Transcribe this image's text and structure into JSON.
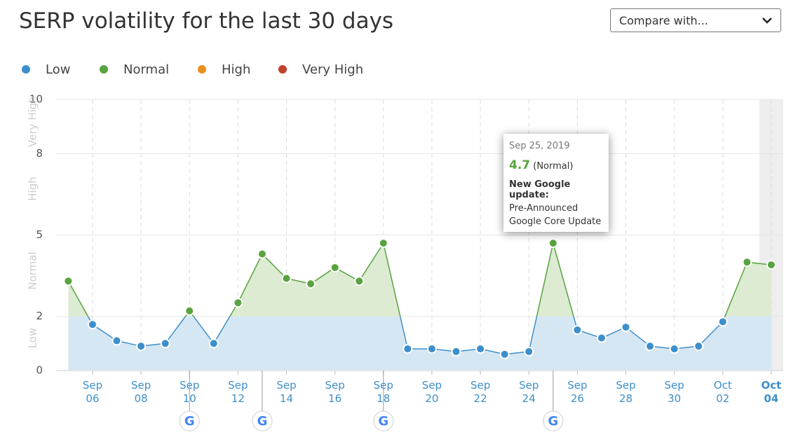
{
  "header": {
    "title": "SERP volatility for the last 30 days",
    "compare": "Compare with..."
  },
  "chart_data": {
    "type": "line",
    "bands": [
      {
        "name": "Low",
        "color": "#3d8fcb",
        "fill": "#d6e7f4",
        "from": 0,
        "to": 2
      },
      {
        "name": "Normal",
        "color": "#58a33f",
        "fill": "#dcebd2",
        "from": 2,
        "to": 5
      },
      {
        "name": "High",
        "color": "#e8901d",
        "fill": "#f6e3c8",
        "from": 5,
        "to": 8
      },
      {
        "name": "Very High",
        "color": "#c3402d",
        "fill": "#f3d3cd",
        "from": 8,
        "to": 10
      }
    ],
    "categories": [
      null,
      "Sep 06",
      null,
      "Sep 08",
      null,
      "Sep 10",
      null,
      "Sep 12",
      null,
      "Sep 14",
      null,
      "Sep 16",
      null,
      "Sep 18",
      null,
      "Sep 20",
      null,
      "Sep 22",
      null,
      "Sep 24",
      null,
      "Sep 26",
      null,
      "Sep 28",
      null,
      "Sep 30",
      null,
      "Oct 02",
      null,
      "Oct 04"
    ],
    "values": [
      3.3,
      1.7,
      1.1,
      0.9,
      1.0,
      2.2,
      1.0,
      2.5,
      4.3,
      3.4,
      3.2,
      3.8,
      3.3,
      4.7,
      0.8,
      0.8,
      0.7,
      0.8,
      0.6,
      0.7,
      4.7,
      1.5,
      1.2,
      1.6,
      0.9,
      0.8,
      0.9,
      1.8,
      4.0,
      3.9
    ],
    "ylim": [
      0,
      10
    ],
    "yticks": [
      0,
      2,
      5,
      8,
      10
    ],
    "grid": true,
    "google_update_icon": "G",
    "google_updates": [
      5,
      8,
      13,
      20
    ],
    "highlight": 29,
    "tooltip": {
      "date": "Sep 25, 2019",
      "value": 4.7,
      "level": "(Normal)",
      "heading": "New Google update:",
      "lines": [
        "Pre-Announced",
        "Google Core Update"
      ]
    }
  }
}
